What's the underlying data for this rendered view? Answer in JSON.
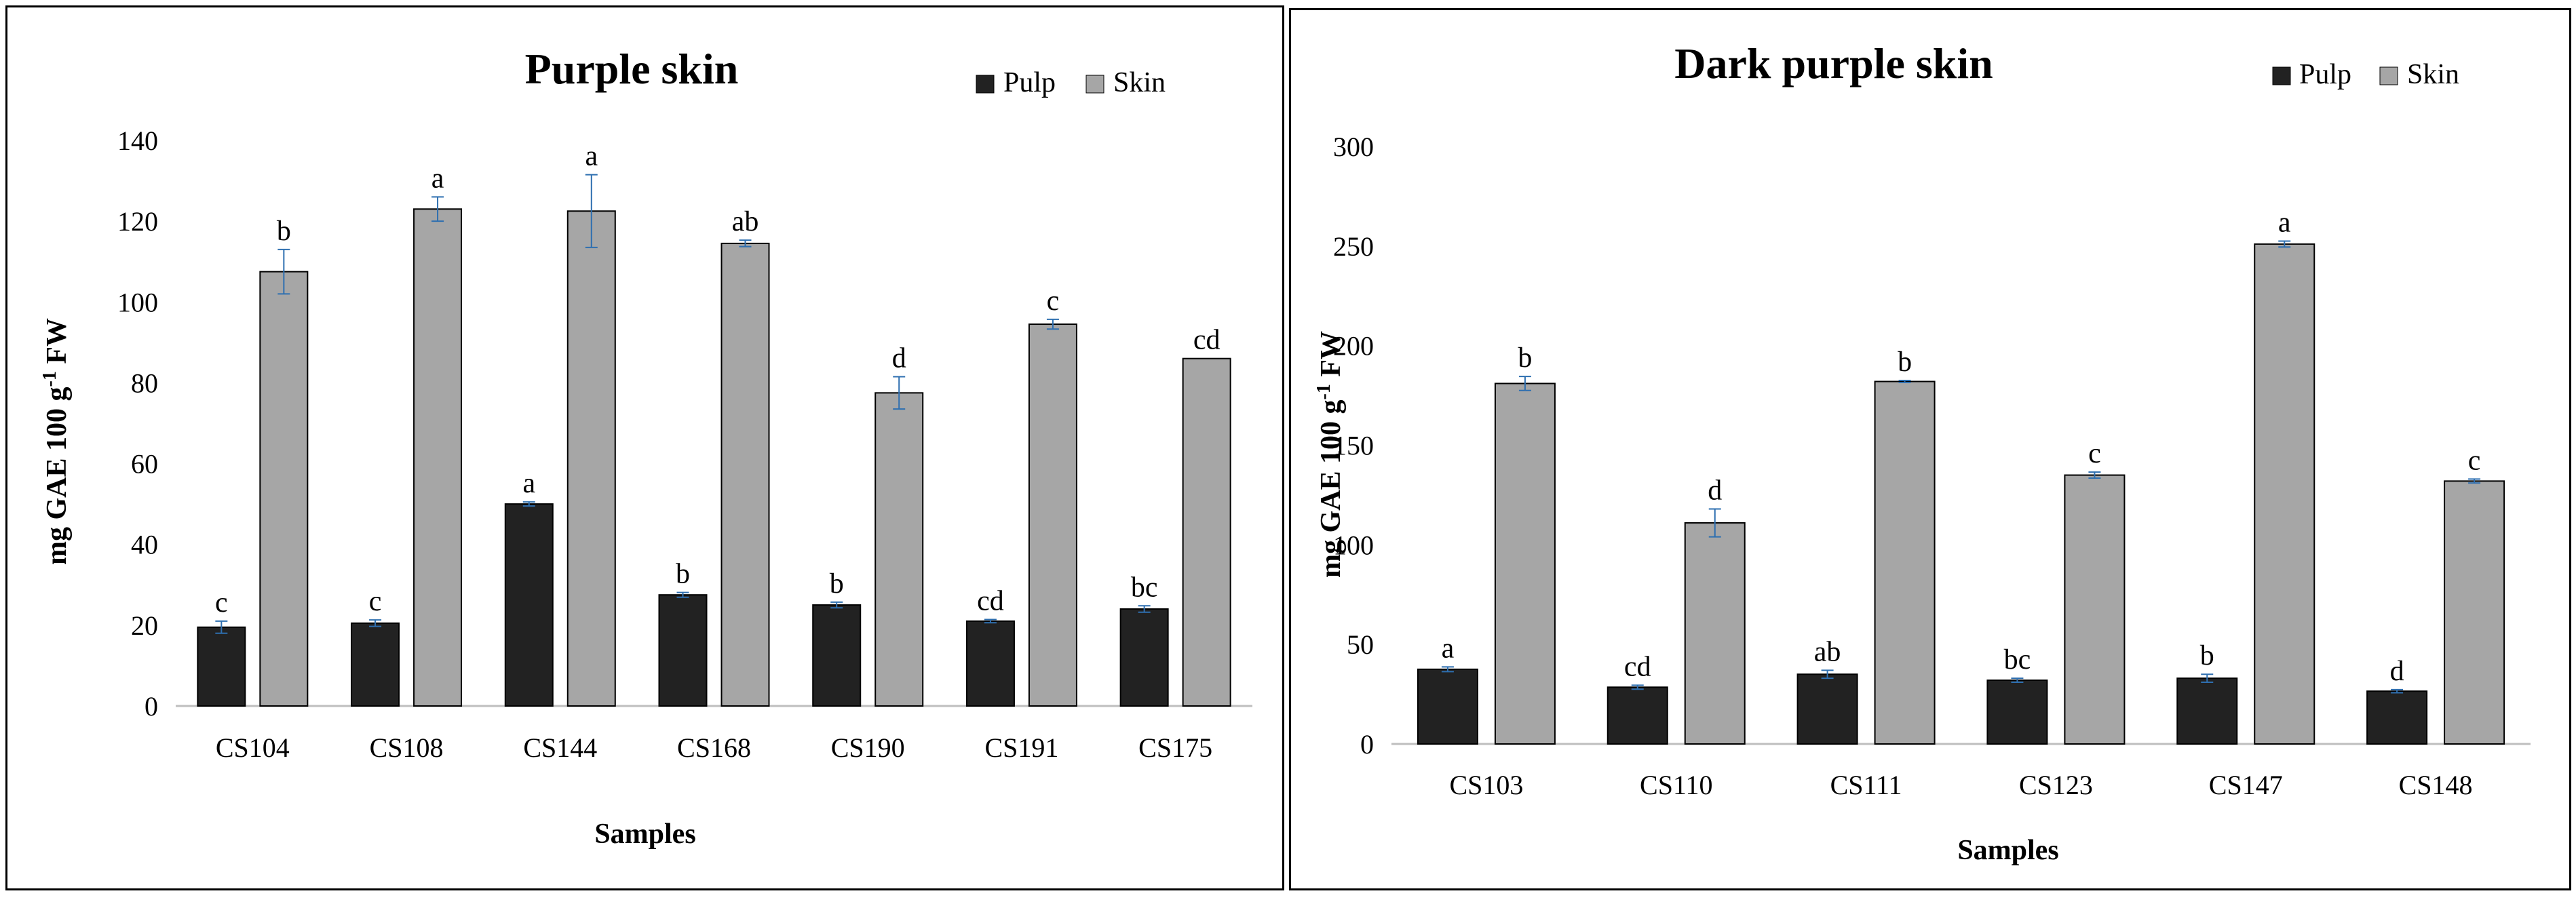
{
  "chart_data": [
    {
      "type": "bar",
      "title": "Purple skin",
      "xlabel": "Samples",
      "ylabel_main": "mg GAE 100 g",
      "ylabel_sup": "-1",
      "ylabel_tail": " FW",
      "ylim": [
        0,
        140
      ],
      "yticks": [
        0,
        20,
        40,
        60,
        80,
        100,
        120,
        140
      ],
      "categories": [
        "CS104",
        "CS108",
        "CS144",
        "CS168",
        "CS190",
        "CS191",
        "CS175"
      ],
      "legend": [
        "Pulp",
        "Skin"
      ],
      "series": [
        {
          "name": "Pulp",
          "color": "#222222",
          "values": [
            19.5,
            20.5,
            50,
            27.5,
            25,
            21,
            24
          ],
          "errors": [
            1.5,
            0.8,
            0.5,
            0.6,
            0.7,
            0.4,
            0.8
          ],
          "letters": [
            "c",
            "c",
            "a",
            "b",
            "b",
            "cd",
            "bc"
          ]
        },
        {
          "name": "Skin",
          "color": "#a6a6a6",
          "values": [
            107.5,
            123,
            122.5,
            114.5,
            77.5,
            94.5,
            86
          ],
          "errors": [
            5.5,
            3,
            9,
            0.8,
            4,
            1.2,
            0
          ],
          "letters": [
            "b",
            "a",
            "a",
            "ab",
            "d",
            "c",
            "cd"
          ]
        }
      ]
    },
    {
      "type": "bar",
      "title": "Dark purple skin",
      "xlabel": "Samples",
      "ylabel_main": "mg GAE 100 g",
      "ylabel_sup": "-1",
      "ylabel_tail": " FW",
      "ylim": [
        0,
        300
      ],
      "yticks": [
        0,
        50,
        100,
        150,
        200,
        250,
        300
      ],
      "categories": [
        "CS103",
        "CS110",
        "CS111",
        "CS123",
        "CS147",
        "CS148"
      ],
      "legend": [
        "Pulp",
        "Skin"
      ],
      "series": [
        {
          "name": "Pulp",
          "color": "#222222",
          "values": [
            37.5,
            28.5,
            35,
            32,
            33,
            26.5
          ],
          "errors": [
            1.2,
            1,
            2,
            1,
            2,
            0.8
          ],
          "letters": [
            "a",
            "cd",
            "ab",
            "bc",
            "b",
            "d"
          ]
        },
        {
          "name": "Skin",
          "color": "#a6a6a6",
          "values": [
            181,
            111,
            182,
            135,
            251,
            132
          ],
          "errors": [
            3.5,
            7,
            0.5,
            1.5,
            1.5,
            1
          ],
          "letters": [
            "b",
            "d",
            "b",
            "c",
            "a",
            "c"
          ]
        }
      ]
    }
  ]
}
